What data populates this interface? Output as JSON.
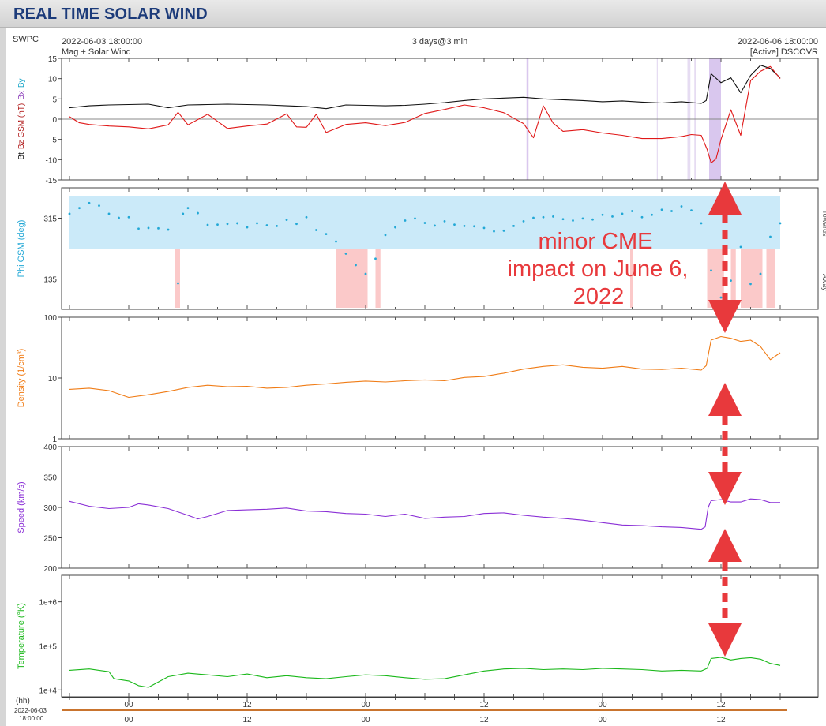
{
  "page": {
    "title": "REAL TIME SOLAR WIND"
  },
  "header": {
    "org": "SWPC",
    "start": "2022-06-03 18:00:00",
    "sub_left": "Mag + Solar Wind",
    "span": "3 days@3 min",
    "end": "2022-06-06 18:00:00",
    "source": "[Active] DSCOVR"
  },
  "annotation": {
    "lines": [
      "minor CME",
      "impact on June 6,",
      "2022"
    ],
    "color": "#e8393c"
  },
  "bottom_axis": {
    "unit": "(hh)",
    "start_date": "2022-06-03",
    "start_time": "18:00:00",
    "ticks": [
      "00",
      "12",
      "00",
      "12",
      "00",
      "12"
    ]
  },
  "chart_data": [
    {
      "type": "line",
      "panel": "mag",
      "ylabel_parts": [
        "Bt",
        "Bz GSM (nT)",
        "Bx",
        "By"
      ],
      "ylim": [
        -15,
        15
      ],
      "yticks": [
        "15",
        "10",
        "5",
        "0",
        "-5",
        "-10",
        "-15"
      ],
      "series": [
        {
          "name": "Bt",
          "color": "#111111",
          "x": [
            0,
            2,
            4,
            6,
            8,
            10,
            12,
            14,
            16,
            18,
            20,
            22,
            24,
            26,
            28,
            30,
            32,
            34,
            36,
            38,
            40,
            42,
            44,
            46,
            48,
            50,
            52,
            54,
            56,
            58,
            60,
            62,
            64,
            64.5,
            65,
            66,
            67,
            68,
            69,
            70,
            71,
            72
          ],
          "y": [
            2.8,
            3.3,
            3.5,
            3.6,
            3.7,
            2.8,
            3.5,
            3.6,
            3.7,
            3.6,
            3.5,
            3.3,
            3.1,
            2.6,
            3.5,
            3.4,
            3.3,
            3.4,
            3.7,
            4.1,
            4.6,
            5.0,
            5.2,
            5.4,
            5.0,
            4.8,
            4.6,
            4.3,
            4.5,
            4.2,
            4.0,
            4.3,
            3.9,
            4.6,
            11.2,
            9.0,
            10.2,
            6.5,
            10.8,
            13.3,
            12.5,
            10.2
          ]
        },
        {
          "name": "Bz GSM",
          "color": "#e01818",
          "x": [
            0,
            1,
            2,
            4,
            6,
            8,
            10,
            11,
            12,
            14,
            16,
            18,
            20,
            22,
            23,
            24,
            25,
            26,
            28,
            30,
            32,
            34,
            36,
            38,
            40,
            42,
            44,
            46,
            47,
            48,
            49,
            50,
            52,
            54,
            56,
            58,
            60,
            62,
            63,
            64,
            64.6,
            65,
            65.5,
            66,
            67,
            68,
            69,
            70,
            71,
            72
          ],
          "y": [
            0.6,
            -0.9,
            -1.3,
            -1.7,
            -1.9,
            -2.4,
            -1.4,
            1.7,
            -1.4,
            1.2,
            -2.3,
            -1.7,
            -1.2,
            1.3,
            -1.9,
            -2.0,
            1.2,
            -3.3,
            -1.3,
            -0.9,
            -1.6,
            -0.8,
            1.4,
            2.4,
            3.5,
            2.8,
            1.6,
            -1.1,
            -4.6,
            3.3,
            -1.0,
            -3.0,
            -2.6,
            -3.4,
            -4.0,
            -4.8,
            -4.8,
            -4.3,
            -3.8,
            -4.0,
            -7.5,
            -10.8,
            -9.8,
            -5.0,
            2.3,
            -4.0,
            9.5,
            11.8,
            13.0,
            10.0
          ]
        }
      ],
      "shading": [
        {
          "from": 46.3,
          "to": 46.5,
          "color": "#d9c7ee"
        },
        {
          "from": 59.5,
          "to": 59.6,
          "color": "#e6dcf2"
        },
        {
          "from": 62.6,
          "to": 62.9,
          "color": "#e6dcf2"
        },
        {
          "from": 63.3,
          "to": 63.5,
          "color": "#e6dcf2"
        },
        {
          "from": 64.8,
          "to": 66.0,
          "color": "#d9c7ee"
        }
      ]
    },
    {
      "type": "scatter",
      "panel": "phi",
      "ylabel": "Phi GSM (deg)",
      "ylim": [
        45,
        405
      ],
      "yticks": [
        "315",
        "135"
      ],
      "right_labels": [
        "Towards",
        "Away"
      ],
      "series": [
        {
          "name": "Phi GSM",
          "color": "#22a8d6",
          "x": [
            0,
            1,
            2,
            3,
            4,
            5,
            6,
            7,
            8,
            9,
            10,
            11,
            11.5,
            12,
            13,
            14,
            15,
            16,
            17,
            18,
            19,
            20,
            21,
            22,
            23,
            24,
            25,
            26,
            27,
            28,
            29,
            30,
            31,
            32,
            33,
            34,
            35,
            36,
            37,
            38,
            39,
            40,
            41,
            42,
            43,
            44,
            45,
            46,
            47,
            48,
            49,
            50,
            51,
            52,
            53,
            54,
            55,
            56,
            57,
            58,
            59,
            60,
            61,
            62,
            63,
            64,
            65,
            66,
            67,
            68,
            69,
            70,
            71,
            72
          ],
          "y": [
            328,
            345,
            360,
            352,
            328,
            316,
            318,
            284,
            286,
            285,
            281,
            122,
            328,
            345,
            330,
            295,
            296,
            298,
            300,
            288,
            300,
            294,
            292,
            310,
            298,
            318,
            280,
            268,
            246,
            210,
            176,
            150,
            195,
            265,
            288,
            308,
            314,
            301,
            293,
            306,
            296,
            292,
            291,
            286,
            276,
            278,
            292,
            306,
            316,
            318,
            320,
            312,
            308,
            314,
            311,
            325,
            320,
            328,
            336,
            318,
            325,
            340,
            336,
            350,
            338,
            300,
            160,
            80,
            130,
            230,
            120,
            150,
            260,
            300
          ]
        }
      ],
      "shading": [
        {
          "from": 0,
          "to": 72,
          "sector": "towards",
          "color": "#cbeaf9"
        },
        {
          "from": 10.7,
          "to": 11.2,
          "sector": "away",
          "color": "#fbc9c9"
        },
        {
          "from": 27.0,
          "to": 30.2,
          "sector": "away",
          "color": "#fbc9c9"
        },
        {
          "from": 31.0,
          "to": 31.5,
          "sector": "away",
          "color": "#fbc9c9"
        },
        {
          "from": 56.8,
          "to": 57.1,
          "sector": "away",
          "color": "#fbc9c9"
        },
        {
          "from": 64.6,
          "to": 66.3,
          "sector": "away",
          "color": "#fbc9c9"
        },
        {
          "from": 67.0,
          "to": 67.5,
          "sector": "away",
          "color": "#fbc9c9"
        },
        {
          "from": 68.0,
          "to": 70.2,
          "sector": "away",
          "color": "#fbc9c9"
        },
        {
          "from": 70.6,
          "to": 71.5,
          "sector": "away",
          "color": "#fbc9c9"
        }
      ]
    },
    {
      "type": "line",
      "panel": "density",
      "ylabel": "Density (1/cm³)",
      "scale": "log",
      "ylim": [
        1,
        100
      ],
      "yticks": [
        "100",
        "10",
        "1"
      ],
      "series": [
        {
          "name": "Density",
          "color": "#f07c16",
          "x": [
            0,
            2,
            4,
            6,
            8,
            10,
            12,
            14,
            16,
            18,
            20,
            22,
            24,
            26,
            28,
            30,
            32,
            34,
            36,
            38,
            40,
            42,
            44,
            46,
            48,
            50,
            52,
            54,
            56,
            58,
            60,
            62,
            64,
            64.5,
            65,
            66,
            67,
            68,
            69,
            70,
            71,
            72
          ],
          "y": [
            6.5,
            6.8,
            6.2,
            4.8,
            5.3,
            6.0,
            7.0,
            7.6,
            7.2,
            7.3,
            6.8,
            7.0,
            7.6,
            8.0,
            8.5,
            8.9,
            8.6,
            9.0,
            9.3,
            9.0,
            10.2,
            10.6,
            12.0,
            14.0,
            15.5,
            16.5,
            15.0,
            14.5,
            15.5,
            14.0,
            13.8,
            14.5,
            13.5,
            16.0,
            42.0,
            48.0,
            45.0,
            40.0,
            42.0,
            33.0,
            20.0,
            26.0
          ]
        }
      ]
    },
    {
      "type": "line",
      "panel": "speed",
      "ylabel": "Speed (km/s)",
      "ylim": [
        200,
        400
      ],
      "yticks": [
        "400",
        "350",
        "300",
        "250",
        "200"
      ],
      "series": [
        {
          "name": "Speed",
          "color": "#8a2fd6",
          "x": [
            0,
            2,
            4,
            6,
            7,
            8,
            10,
            12,
            13,
            14,
            16,
            18,
            20,
            22,
            24,
            26,
            28,
            30,
            32,
            34,
            36,
            38,
            40,
            42,
            44,
            46,
            48,
            50,
            52,
            54,
            56,
            58,
            60,
            62,
            64,
            64.4,
            64.7,
            65,
            66,
            67,
            68,
            69,
            70,
            71,
            72
          ],
          "y": [
            310,
            302,
            298,
            300,
            306,
            304,
            298,
            287,
            281,
            285,
            295,
            296,
            297,
            299,
            294,
            293,
            290,
            289,
            285,
            289,
            282,
            284,
            285,
            290,
            291,
            287,
            284,
            282,
            279,
            275,
            271,
            270,
            268,
            267,
            264,
            268,
            300,
            311,
            313,
            309,
            309,
            314,
            313,
            308,
            308
          ]
        }
      ]
    },
    {
      "type": "line",
      "panel": "temperature",
      "ylabel": "Temperature (°K)",
      "scale": "log",
      "ylim": [
        7000,
        4000000
      ],
      "yticks": [
        "1e+6",
        "1e+5",
        "1e+4"
      ],
      "series": [
        {
          "name": "Temperature",
          "color": "#1ab81a",
          "x": [
            0,
            2,
            4,
            4.5,
            6,
            7,
            8,
            10,
            12,
            14,
            16,
            18,
            20,
            22,
            24,
            26,
            28,
            30,
            32,
            34,
            36,
            38,
            40,
            42,
            44,
            46,
            48,
            50,
            52,
            54,
            56,
            58,
            60,
            62,
            64,
            64.6,
            65,
            66,
            67,
            68,
            69,
            70,
            71,
            72
          ],
          "y": [
            28000,
            30000,
            26000,
            18000,
            16000,
            12500,
            11500,
            20000,
            24000,
            22000,
            20000,
            23000,
            19000,
            21000,
            19000,
            18000,
            20000,
            22000,
            21000,
            19000,
            17500,
            18000,
            22000,
            27000,
            30000,
            31000,
            29000,
            30000,
            29000,
            31000,
            30000,
            29000,
            27000,
            28000,
            27000,
            31000,
            52000,
            55000,
            48000,
            52000,
            54000,
            50000,
            40000,
            36000
          ]
        }
      ]
    }
  ]
}
